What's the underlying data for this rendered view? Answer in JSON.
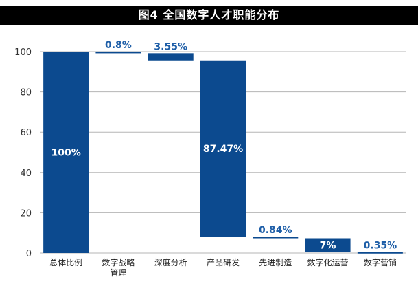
{
  "chart_data": {
    "type": "waterfall",
    "title": "图4  全国数字人才职能分布",
    "xlabel": "",
    "ylabel": "",
    "ylim": [
      0,
      100
    ],
    "yticks": [
      0,
      20,
      40,
      60,
      80,
      100
    ],
    "grid": true,
    "legend": "none",
    "bar_color": "#0c4a8f",
    "categories": [
      "总体比例",
      "数字战略管理",
      "深度分析",
      "产品研发",
      "先进制造",
      "数字化运营",
      "数字营销"
    ],
    "category_labels": [
      [
        "总体比例"
      ],
      [
        "数字战略",
        "管理"
      ],
      [
        "深度分析"
      ],
      [
        "产品研发"
      ],
      [
        "先进制造"
      ],
      [
        "数字化运营"
      ],
      [
        "数字营销"
      ]
    ],
    "values": [
      100,
      0.8,
      3.55,
      87.47,
      0.84,
      7,
      0.35
    ],
    "bar_bottoms": [
      0,
      99.2,
      95.65,
      8.18,
      7.34,
      0.34,
      -0.01
    ],
    "data_labels": [
      "100%",
      "0.8%",
      "3.55%",
      "87.47%",
      "0.84%",
      "7%",
      "0.35%"
    ],
    "label_placement": [
      "inside",
      "above",
      "above",
      "inside",
      "above",
      "inside",
      "above"
    ]
  }
}
